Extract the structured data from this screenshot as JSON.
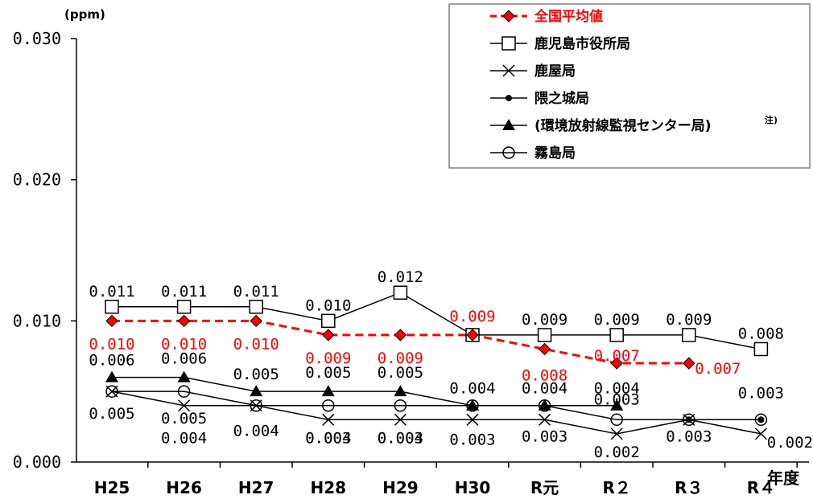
{
  "chart_data": {
    "type": "line",
    "ylabel": "(ppm)",
    "xlabel": "年度",
    "ylim": [
      0,
      0.03
    ],
    "yticks": [
      "0.000",
      "0.010",
      "0.020",
      "0.030"
    ],
    "categories": [
      "H25",
      "H26",
      "H27",
      "H28",
      "H29",
      "H30",
      "R元",
      "R２",
      "R３",
      "R４"
    ],
    "legend_note": "注)",
    "series": [
      {
        "name": "全国平均値",
        "color": "#ff0000",
        "marker": "diamond",
        "dashed": true,
        "label_color": "#ff0000",
        "values": [
          0.01,
          0.01,
          0.01,
          0.009,
          0.009,
          0.009,
          0.008,
          0.007,
          0.007,
          null
        ],
        "labels": [
          "0.010",
          "0.010",
          "0.010",
          "0.009",
          "0.009",
          "0.009",
          "0.008",
          "0.007",
          "0.007",
          null
        ]
      },
      {
        "name": "鹿児島市役所局",
        "color": "#000000",
        "marker": "square",
        "values": [
          0.011,
          0.011,
          0.011,
          0.01,
          0.012,
          0.009,
          0.009,
          0.009,
          0.009,
          0.008
        ],
        "labels": [
          "0.011",
          "0.011",
          "0.011",
          "0.010",
          "0.012",
          null,
          "0.009",
          "0.009",
          "0.009",
          "0.008"
        ]
      },
      {
        "name": "鹿屋局",
        "color": "#000000",
        "marker": "x",
        "values": [
          0.005,
          0.004,
          0.004,
          0.003,
          0.003,
          0.003,
          0.003,
          0.002,
          0.003,
          0.002
        ],
        "labels": [
          null,
          "0.004",
          null,
          "0.003",
          "0.003",
          "0.003",
          "0.003",
          "0.002",
          "0.003",
          "0.002"
        ]
      },
      {
        "name": "隈之城局",
        "color": "#000000",
        "marker": "dot",
        "values": [
          null,
          null,
          null,
          null,
          null,
          0.004,
          0.004,
          null,
          0.003,
          0.003
        ],
        "labels": [
          null,
          null,
          null,
          null,
          null,
          null,
          null,
          null,
          null,
          null
        ]
      },
      {
        "name": "(環境放射線監視センター局)",
        "color": "#000000",
        "marker": "triangle",
        "values": [
          0.006,
          0.006,
          0.005,
          0.005,
          0.005,
          0.004,
          0.004,
          0.004,
          null,
          null
        ],
        "labels": [
          "0.006",
          "0.006",
          "0.005",
          "0.005",
          "0.005",
          "0.004",
          "0.004",
          "0.004",
          null,
          null
        ]
      },
      {
        "name": "霧島局",
        "color": "#000000",
        "marker": "circle",
        "values": [
          0.005,
          0.005,
          0.004,
          0.004,
          0.004,
          0.004,
          0.004,
          0.003,
          0.003,
          0.003
        ],
        "labels": [
          "0.005",
          "0.005",
          "0.004",
          "0.004",
          "0.004",
          null,
          null,
          "0.003",
          null,
          "0.003"
        ]
      }
    ]
  }
}
